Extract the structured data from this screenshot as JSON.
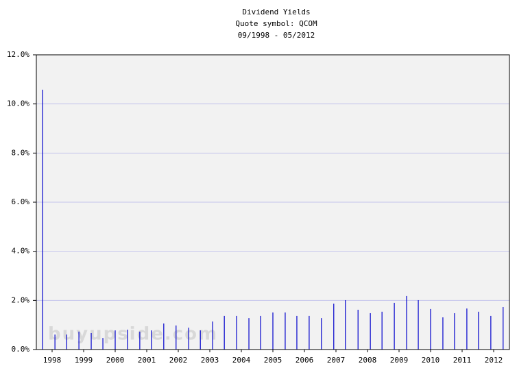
{
  "chart_data": {
    "type": "bar",
    "title": "Dividend Yields",
    "subtitle": "Quote symbol: QCOM",
    "date_range": "09/1998 - 05/2012",
    "watermark": "buyupside.com",
    "color": "#0000cc",
    "grid": true,
    "xlim": [
      1998,
      2013
    ],
    "xticks": [
      {
        "value": 1998.5,
        "label": "1998"
      },
      {
        "value": 1999.5,
        "label": "1999"
      },
      {
        "value": 2000.5,
        "label": "2000"
      },
      {
        "value": 2001.5,
        "label": "2001"
      },
      {
        "value": 2002.5,
        "label": "2002"
      },
      {
        "value": 2003.5,
        "label": "2003"
      },
      {
        "value": 2004.5,
        "label": "2004"
      },
      {
        "value": 2005.5,
        "label": "2005"
      },
      {
        "value": 2006.5,
        "label": "2006"
      },
      {
        "value": 2007.5,
        "label": "2007"
      },
      {
        "value": 2008.5,
        "label": "2008"
      },
      {
        "value": 2009.5,
        "label": "2009"
      },
      {
        "value": 2010.5,
        "label": "2010"
      },
      {
        "value": 2011.5,
        "label": "2011"
      },
      {
        "value": 2012.5,
        "label": "2012"
      }
    ],
    "ylim": [
      0,
      12
    ],
    "yticks": [
      {
        "value": 0,
        "label": "0.0%"
      },
      {
        "value": 2,
        "label": "2.0%"
      },
      {
        "value": 4,
        "label": "4.0%"
      },
      {
        "value": 6,
        "label": "6.0%"
      },
      {
        "value": 8,
        "label": "8.0%"
      },
      {
        "value": 10,
        "label": "10.0%"
      },
      {
        "value": 12,
        "label": "12.0%"
      }
    ],
    "x": [
      1998.2,
      1998.59,
      1998.96,
      1999.35,
      1999.74,
      2000.11,
      2000.5,
      2000.89,
      2001.28,
      2001.65,
      2002.04,
      2002.43,
      2002.83,
      2003.2,
      2003.59,
      2003.96,
      2004.35,
      2004.74,
      2005.11,
      2005.5,
      2005.89,
      2006.26,
      2006.65,
      2007.04,
      2007.43,
      2007.8,
      2008.2,
      2008.59,
      2008.96,
      2009.35,
      2009.74,
      2010.11,
      2010.5,
      2010.89,
      2011.26,
      2011.65,
      2012.02,
      2012.41,
      2012.8
    ],
    "values": [
      10.58,
      0.61,
      0.61,
      0.73,
      0.67,
      0.47,
      0.78,
      0.81,
      0.73,
      0.78,
      1.06,
      0.98,
      0.89,
      0.78,
      1.14,
      1.37,
      1.37,
      1.28,
      1.37,
      1.51,
      1.51,
      1.37,
      1.37,
      1.28,
      1.87,
      2.01,
      1.62,
      1.48,
      1.54,
      1.9,
      2.18,
      2.01,
      1.65,
      1.31,
      1.48,
      1.67,
      1.54,
      1.37,
      1.73
    ]
  }
}
